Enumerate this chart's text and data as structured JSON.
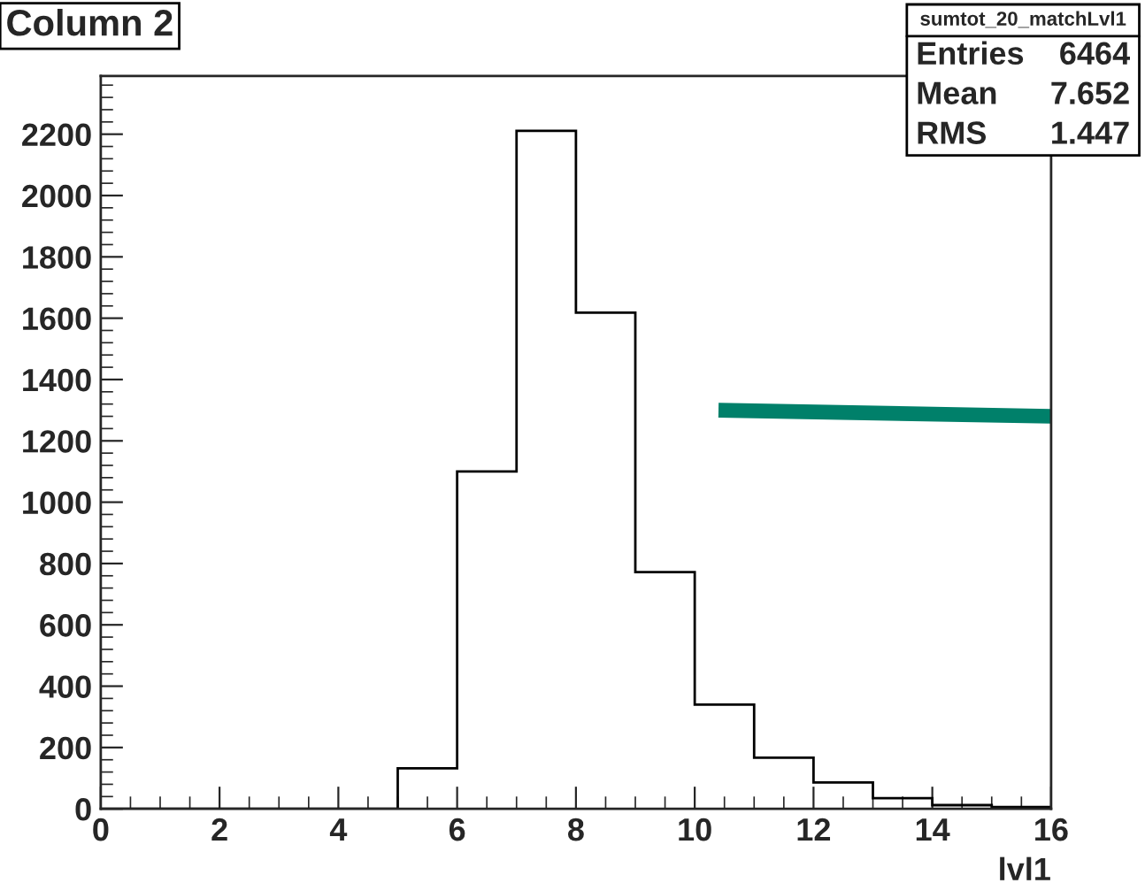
{
  "chart_data": {
    "type": "histogram",
    "title": "Column 2",
    "xlabel": "lvl1",
    "bins": [
      0,
      1,
      2,
      3,
      4,
      5,
      6,
      7,
      8,
      9,
      10,
      11,
      12,
      13,
      14,
      15,
      16
    ],
    "series": [
      {
        "color": "#000000",
        "values": [
          0,
          0,
          0,
          0,
          0,
          132,
          1100,
          2211,
          1618,
          772,
          340,
          167,
          86,
          35,
          12,
          6
        ]
      },
      {
        "type": "line",
        "color": "#00806a",
        "x": [
          10.4,
          16
        ],
        "values": [
          1300,
          1280
        ]
      }
    ],
    "xlim": [
      0,
      16
    ],
    "xticks": [
      0,
      2,
      4,
      6,
      8,
      10,
      12,
      14,
      16
    ],
    "ylim": [
      0,
      2390
    ],
    "yticks": [
      0,
      200,
      400,
      600,
      800,
      1000,
      1200,
      1400,
      1600,
      1800,
      2000,
      2200
    ],
    "grid": false,
    "annotations": [
      "sumtot_20_matchLvl1",
      "Entries",
      "6464",
      "Mean",
      "7.652",
      "RMS",
      "1.447"
    ]
  }
}
